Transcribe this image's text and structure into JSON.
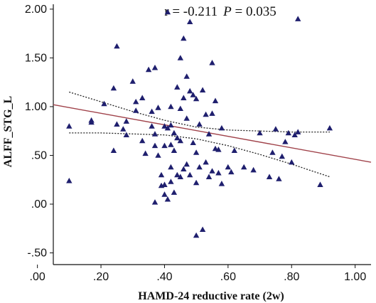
{
  "chart_data": {
    "type": "scatter",
    "xlabel": "HAMD-24 reductive rate (2w)",
    "ylabel": "ALFF_STG_L",
    "annotation": {
      "r_text": "r = -0.211",
      "p_symbol": "P",
      "p_text": " = 0.035"
    },
    "xlim": [
      0.05,
      1.05
    ],
    "ylim": [
      -0.62,
      2.05
    ],
    "x_ticks": [
      0.0,
      0.2,
      0.4,
      0.6,
      0.8,
      1.0
    ],
    "x_tick_labels": [
      ".00",
      ".20",
      ".40",
      ".60",
      ".80",
      "1.00"
    ],
    "y_ticks": [
      -0.5,
      0.0,
      0.5,
      1.0,
      1.5,
      2.0
    ],
    "y_tick_labels": [
      "-.50",
      ".00",
      ".50",
      "1.00",
      "1.50",
      "2.00"
    ],
    "grid": false,
    "colors": {
      "marker": "#1f1f6e",
      "fit_line": "#a0424a",
      "ci_line": "#222222"
    },
    "fit_line": {
      "x": [
        0.05,
        1.05
      ],
      "y": [
        1.02,
        0.43
      ]
    },
    "ci_upper": {
      "x": [
        0.1,
        0.2,
        0.3,
        0.4,
        0.5,
        0.6,
        0.7,
        0.8,
        0.92
      ],
      "y": [
        1.15,
        1.05,
        0.95,
        0.86,
        0.79,
        0.76,
        0.75,
        0.74,
        0.74
      ]
    },
    "ci_lower": {
      "x": [
        0.1,
        0.2,
        0.3,
        0.4,
        0.5,
        0.6,
        0.7,
        0.8,
        0.92
      ],
      "y": [
        0.73,
        0.73,
        0.72,
        0.71,
        0.67,
        0.6,
        0.51,
        0.41,
        0.28
      ]
    },
    "points": {
      "x": [
        0.1,
        0.1,
        0.17,
        0.17,
        0.21,
        0.24,
        0.24,
        0.25,
        0.25,
        0.27,
        0.28,
        0.28,
        0.3,
        0.31,
        0.31,
        0.33,
        0.33,
        0.34,
        0.35,
        0.36,
        0.36,
        0.37,
        0.37,
        0.37,
        0.38,
        0.38,
        0.39,
        0.39,
        0.4,
        0.4,
        0.4,
        0.4,
        0.41,
        0.41,
        0.41,
        0.42,
        0.42,
        0.42,
        0.43,
        0.43,
        0.43,
        0.44,
        0.44,
        0.44,
        0.45,
        0.45,
        0.45,
        0.45,
        0.46,
        0.46,
        0.46,
        0.47,
        0.47,
        0.47,
        0.48,
        0.48,
        0.48,
        0.49,
        0.49,
        0.5,
        0.5,
        0.5,
        0.51,
        0.51,
        0.52,
        0.52,
        0.53,
        0.53,
        0.54,
        0.54,
        0.55,
        0.55,
        0.55,
        0.56,
        0.56,
        0.57,
        0.57,
        0.58,
        0.58,
        0.6,
        0.61,
        0.62,
        0.65,
        0.68,
        0.7,
        0.73,
        0.74,
        0.75,
        0.76,
        0.77,
        0.78,
        0.79,
        0.8,
        0.81,
        0.82,
        0.89,
        0.92,
        0.82,
        0.5,
        0.42,
        0.42,
        0.37
      ],
      "y": [
        0.8,
        0.24,
        0.86,
        0.84,
        1.03,
        0.55,
        1.19,
        0.82,
        1.62,
        0.77,
        0.85,
        0.71,
        1.26,
        1.05,
        0.96,
        1.09,
        0.65,
        0.52,
        1.38,
        0.95,
        0.8,
        1.4,
        0.72,
        0.6,
        0.99,
        0.5,
        0.3,
        0.19,
        0.8,
        0.6,
        0.2,
        0.1,
        1.97,
        0.78,
        0.05,
        1.0,
        0.81,
        0.38,
        0.73,
        0.55,
        0.12,
        1.2,
        0.68,
        0.3,
        1.5,
        0.98,
        0.65,
        0.28,
        1.7,
        1.09,
        0.36,
        1.31,
        0.88,
        0.41,
        1.87,
        1.16,
        0.3,
        1.12,
        0.63,
        1.08,
        0.53,
        0.22,
        0.82,
        0.38,
        1.17,
        -0.26,
        0.92,
        0.43,
        0.72,
        0.28,
        1.45,
        0.93,
        0.34,
        1.06,
        0.57,
        0.56,
        0.32,
        0.78,
        0.21,
        0.38,
        0.33,
        0.55,
        0.38,
        0.35,
        0.73,
        0.28,
        0.53,
        0.77,
        0.26,
        0.49,
        0.64,
        0.73,
        0.43,
        0.71,
        0.74,
        0.2,
        0.78,
        1.9,
        -0.32,
        0.23,
        0.61,
        0.02
      ],
      "note_removed": ""
    }
  }
}
